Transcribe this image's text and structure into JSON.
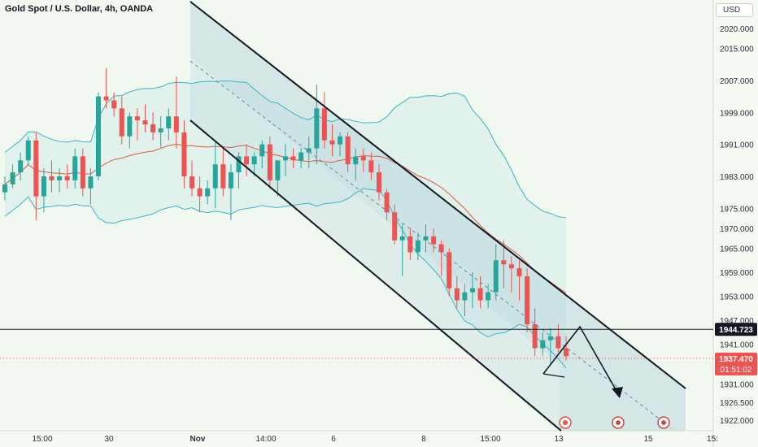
{
  "header": {
    "title": "Gold Spot / U.S. Dollar, 4h, OANDA",
    "currency": "USD"
  },
  "price_axis": {
    "ticks": [
      "2020.000",
      "2015.000",
      "2007.000",
      "1999.000",
      "1991.000",
      "1983.000",
      "1975.000",
      "1970.000",
      "1965.000",
      "1959.000",
      "1953.000",
      "1947.000",
      "1941.000",
      "1931.000",
      "1926.500",
      "1922.000"
    ]
  },
  "time_axis": {
    "ticks": [
      "15:00",
      "30",
      "Nov",
      "14:00",
      "6",
      "8",
      "15:00",
      "13",
      "15",
      "15:"
    ]
  },
  "markers": {
    "horizontal_level": "1944.723",
    "last_price": "1937.470",
    "countdown": "01:51:02"
  },
  "colors": {
    "background": "#f1f8ef",
    "bull": "#26a69a",
    "bear": "#ef5350",
    "bollinger": "#39b6c9",
    "ma": "#e05a3a",
    "channel": "#131722"
  },
  "chart_data": {
    "type": "candlestick",
    "title": "Gold Spot / U.S. Dollar, 4h, OANDA",
    "ylim": [
      1920,
      2024
    ],
    "candles": [
      [
        1979,
        1983,
        1977,
        1981
      ],
      [
        1981,
        1986,
        1980,
        1984
      ],
      [
        1984,
        1989,
        1982,
        1987
      ],
      [
        1987,
        1993,
        1986,
        1992
      ],
      [
        1992,
        1994,
        1972,
        1978
      ],
      [
        1978,
        1985,
        1974,
        1983
      ],
      [
        1983,
        1987,
        1979,
        1982
      ],
      [
        1982,
        1985,
        1979,
        1983
      ],
      [
        1983,
        1986,
        1980,
        1982
      ],
      [
        1982,
        1990,
        1980,
        1988
      ],
      [
        1988,
        1990,
        1978,
        1980
      ],
      [
        1980,
        1985,
        1976,
        1983
      ],
      [
        1983,
        2004,
        1982,
        2003
      ],
      [
        2003,
        2010,
        2000,
        2002
      ],
      [
        2002,
        2004,
        1998,
        2000
      ],
      [
        2000,
        2003,
        1991,
        1993
      ],
      [
        1993,
        1999,
        1990,
        1998
      ],
      [
        1998,
        2000,
        1992,
        1997
      ],
      [
        1997,
        2001,
        1994,
        1996
      ],
      [
        1996,
        1999,
        1992,
        1994
      ],
      [
        1994,
        1998,
        1990,
        1995
      ],
      [
        1995,
        2000,
        1992,
        1998
      ],
      [
        1998,
        2008,
        1990,
        1994
      ],
      [
        1994,
        1997,
        1980,
        1983
      ],
      [
        1983,
        1987,
        1978,
        1980
      ],
      [
        1980,
        1983,
        1974,
        1978
      ],
      [
        1978,
        1982,
        1976,
        1980
      ],
      [
        1980,
        1992,
        1975,
        1986
      ],
      [
        1986,
        1990,
        1978,
        1980
      ],
      [
        1980,
        1986,
        1972,
        1984
      ],
      [
        1984,
        1989,
        1980,
        1988
      ],
      [
        1988,
        1991,
        1983,
        1986
      ],
      [
        1986,
        1989,
        1983,
        1988
      ],
      [
        1988,
        1992,
        1985,
        1991
      ],
      [
        1991,
        1993,
        1980,
        1982
      ],
      [
        1982,
        1986,
        1978,
        1987
      ],
      [
        1987,
        1991,
        1983,
        1988
      ],
      [
        1988,
        1990,
        1985,
        1987
      ],
      [
        1987,
        1990,
        1985,
        1989
      ],
      [
        1989,
        1993,
        1985,
        1990
      ],
      [
        1990,
        2006,
        1986,
        2000
      ],
      [
        2000,
        2004,
        1990,
        1992
      ],
      [
        1992,
        1996,
        1988,
        1991
      ],
      [
        1991,
        1994,
        1988,
        1993
      ],
      [
        1993,
        1994,
        1984,
        1986
      ],
      [
        1986,
        1990,
        1982,
        1988
      ],
      [
        1988,
        1990,
        1984,
        1987
      ],
      [
        1987,
        1989,
        1982,
        1984
      ],
      [
        1984,
        1986,
        1977,
        1979
      ],
      [
        1979,
        1980,
        1972,
        1974
      ],
      [
        1974,
        1976,
        1966,
        1967
      ],
      [
        1967,
        1971,
        1958,
        1968
      ],
      [
        1968,
        1970,
        1962,
        1964
      ],
      [
        1964,
        1969,
        1962,
        1967
      ],
      [
        1967,
        1971,
        1964,
        1968
      ],
      [
        1968,
        1970,
        1964,
        1966
      ],
      [
        1966,
        1967,
        1958,
        1964
      ],
      [
        1964,
        1965,
        1953,
        1955
      ],
      [
        1955,
        1958,
        1950,
        1952
      ],
      [
        1952,
        1956,
        1948,
        1954
      ],
      [
        1954,
        1959,
        1950,
        1955
      ],
      [
        1955,
        1958,
        1950,
        1952
      ],
      [
        1952,
        1956,
        1950,
        1954
      ],
      [
        1954,
        1966,
        1952,
        1962
      ],
      [
        1962,
        1967,
        1955,
        1961
      ],
      [
        1961,
        1963,
        1954,
        1960
      ],
      [
        1960,
        1962,
        1952,
        1958
      ],
      [
        1958,
        1960,
        1944,
        1946
      ],
      [
        1946,
        1950,
        1938,
        1940
      ],
      [
        1940,
        1944,
        1938,
        1942
      ],
      [
        1942,
        1945,
        1936,
        1943
      ],
      [
        1943,
        1946,
        1939,
        1940
      ],
      [
        1940,
        1943,
        1937,
        1938
      ]
    ],
    "indicators": [
      "Bollinger Bands",
      "Moving Average",
      "Descending channel"
    ]
  }
}
